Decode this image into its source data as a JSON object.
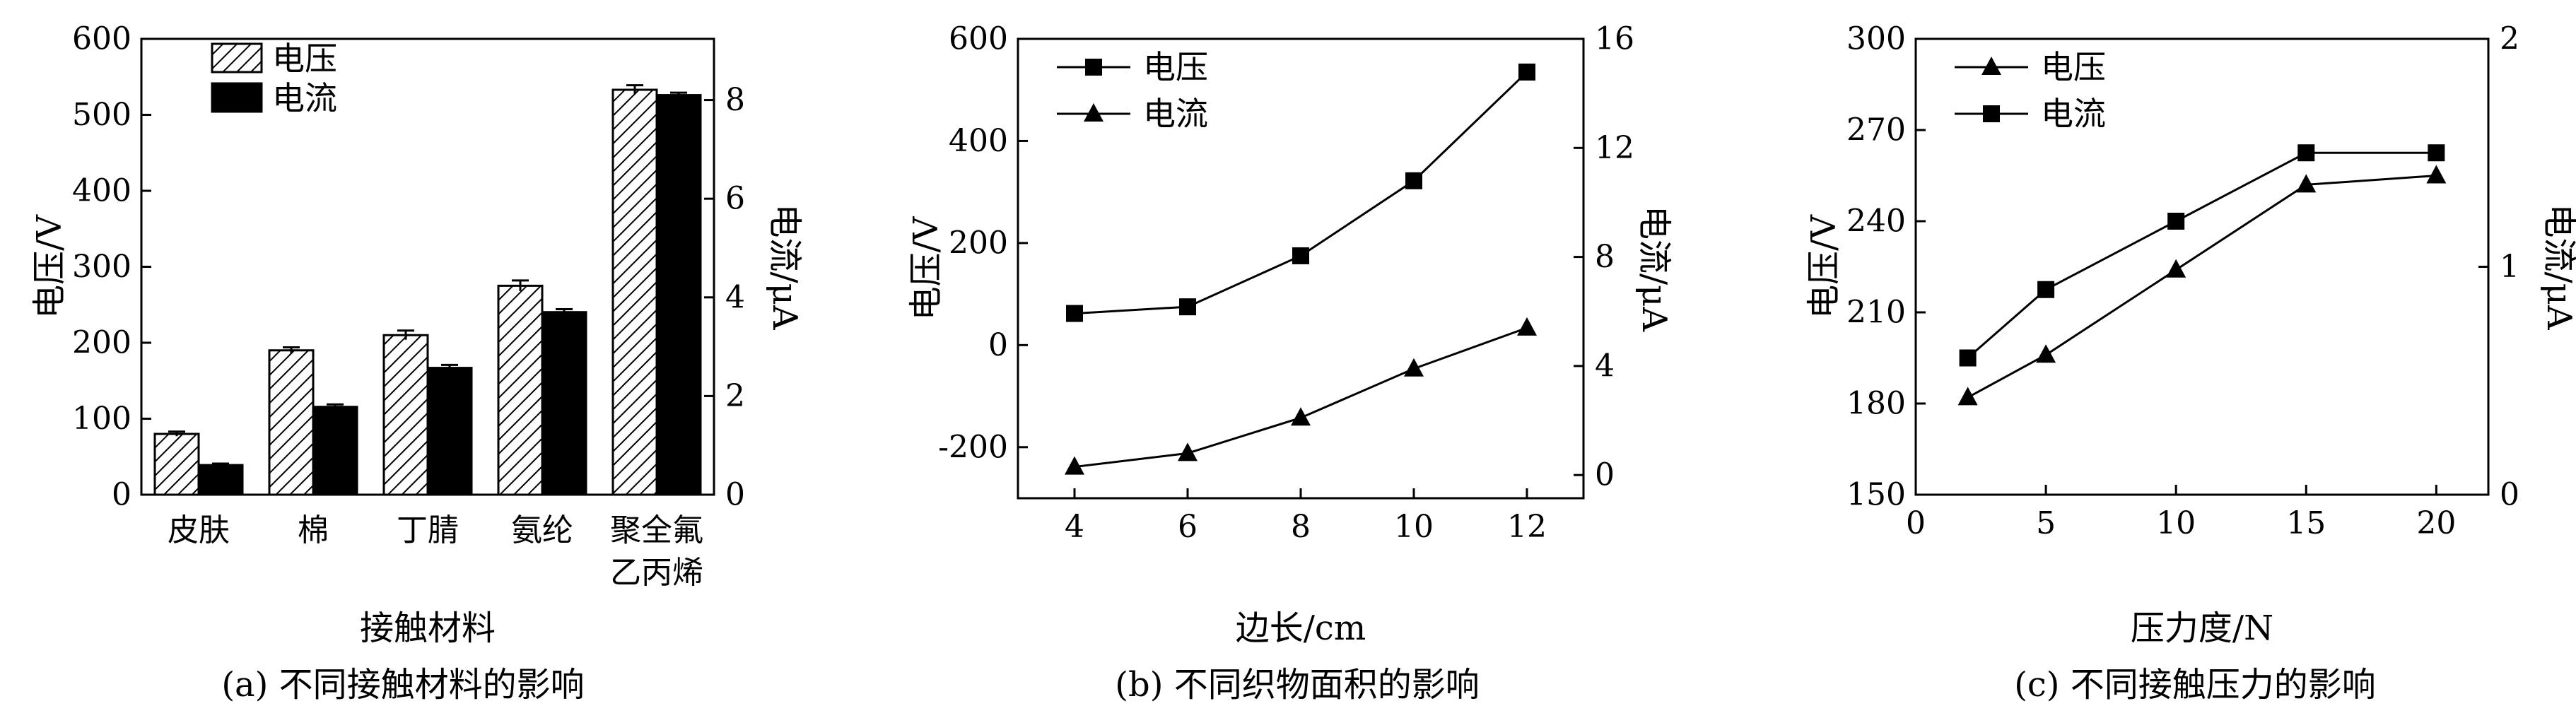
{
  "chart_data": [
    {
      "type": "bar",
      "caption": "(a) 不同接触材料的影响",
      "xlabel": "接触材料",
      "ylabel": "电压/V",
      "y2label": "电流/μA",
      "ylim": [
        0,
        600
      ],
      "y2lim": [
        0,
        9.24
      ],
      "yticks": [
        0,
        100,
        200,
        300,
        400,
        500,
        600
      ],
      "y2ticks": [
        0,
        2,
        4,
        6,
        8
      ],
      "categories": [
        [
          "皮肤"
        ],
        [
          "棉"
        ],
        [
          "丁腈"
        ],
        [
          "氨纶"
        ],
        [
          "聚全氟",
          "乙丙烯"
        ]
      ],
      "series": [
        {
          "name": "电压",
          "axis": "left",
          "pattern": "hatch",
          "values": [
            80,
            190,
            210,
            275,
            533
          ],
          "errors": [
            3,
            4,
            6,
            7,
            6
          ]
        },
        {
          "name": "电流",
          "axis": "right",
          "pattern": "solid",
          "values": [
            0.6,
            1.78,
            2.57,
            3.7,
            8.1
          ],
          "errors": [
            0.03,
            0.05,
            0.06,
            0.06,
            0.05
          ]
        }
      ],
      "legend": "top-left"
    },
    {
      "type": "line",
      "caption": "(b) 不同织物面积的影响",
      "xlabel": "边长/cm",
      "ylabel": "电压/V",
      "y2label": "电流/μA",
      "xlim": [
        3,
        13
      ],
      "xticks": [
        4,
        6,
        8,
        10,
        12
      ],
      "ylim": [
        -300,
        600
      ],
      "y2lim": [
        -0.85,
        16
      ],
      "yticks": [
        -200,
        0,
        200,
        400,
        600
      ],
      "y2ticks": [
        0,
        4,
        8,
        12,
        16
      ],
      "x": [
        4,
        6,
        8,
        10,
        12
      ],
      "series": [
        {
          "name": "电压",
          "axis": "left",
          "marker": "square",
          "values": [
            62,
            75,
            175,
            322,
            535
          ]
        },
        {
          "name": "电流",
          "axis": "right",
          "marker": "triangle",
          "values": [
            0.3,
            0.8,
            2.1,
            3.9,
            5.4
          ]
        }
      ],
      "legend": "top-left"
    },
    {
      "type": "line",
      "caption": "(c) 不同接触压力的影响",
      "xlabel": "压力度/N",
      "ylabel": "电压/V",
      "y2label": "电流/μA",
      "xlim": [
        0,
        22
      ],
      "xticks": [
        0,
        5,
        10,
        15,
        20
      ],
      "ylim": [
        150,
        300
      ],
      "y2lim": [
        0,
        2
      ],
      "yticks": [
        150,
        180,
        210,
        240,
        270,
        300
      ],
      "y2ticks": [
        0,
        1,
        2
      ],
      "x": [
        2,
        5,
        10,
        15,
        20
      ],
      "series": [
        {
          "name": "电压",
          "axis": "left",
          "marker": "triangle",
          "values": [
            182,
            196,
            224,
            252,
            255
          ]
        },
        {
          "name": "电流",
          "axis": "right",
          "marker": "square",
          "values": [
            0.6,
            0.9,
            1.2,
            1.5,
            1.5
          ]
        }
      ],
      "legend": "top-left"
    }
  ]
}
